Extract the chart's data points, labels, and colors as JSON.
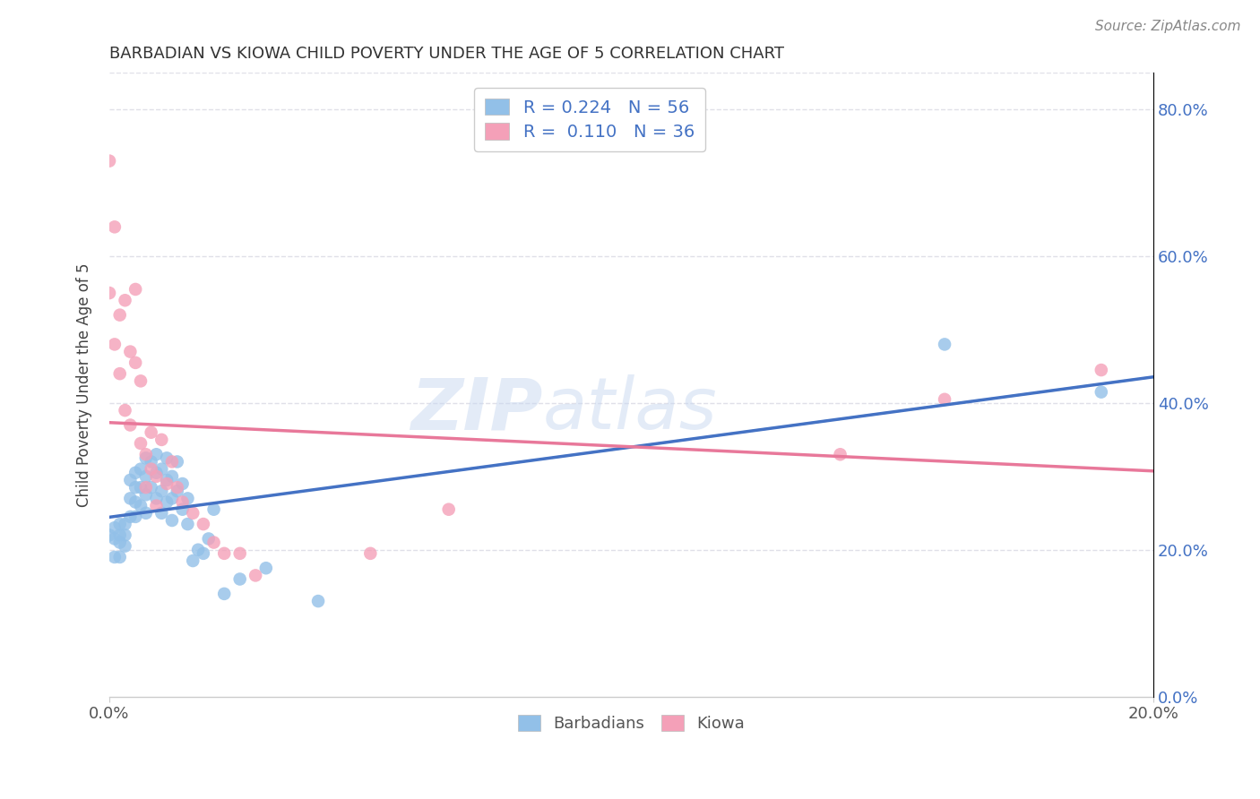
{
  "title": "BARBADIAN VS KIOWA CHILD POVERTY UNDER THE AGE OF 5 CORRELATION CHART",
  "source": "Source: ZipAtlas.com",
  "ylabel": "Child Poverty Under the Age of 5",
  "xlim": [
    0.0,
    0.2
  ],
  "ylim": [
    0.0,
    0.85
  ],
  "yticks": [
    0.0,
    0.2,
    0.4,
    0.6,
    0.8
  ],
  "xticks": [
    0.0,
    0.2
  ],
  "legend_labels": [
    "Barbadians",
    "Kiowa"
  ],
  "barbadian_R": "0.224",
  "barbadian_N": "56",
  "kiowa_R": "0.110",
  "kiowa_N": "36",
  "blue_color": "#92C0E8",
  "pink_color": "#F4A0B8",
  "blue_line_color": "#4472C4",
  "pink_line_color": "#E8789A",
  "dashed_color": "#A0C0E0",
  "barbadian_x": [
    0.0,
    0.001,
    0.001,
    0.001,
    0.002,
    0.002,
    0.002,
    0.002,
    0.003,
    0.003,
    0.003,
    0.004,
    0.004,
    0.004,
    0.005,
    0.005,
    0.005,
    0.005,
    0.006,
    0.006,
    0.006,
    0.007,
    0.007,
    0.007,
    0.007,
    0.008,
    0.008,
    0.009,
    0.009,
    0.009,
    0.01,
    0.01,
    0.01,
    0.011,
    0.011,
    0.011,
    0.012,
    0.012,
    0.012,
    0.013,
    0.013,
    0.014,
    0.014,
    0.015,
    0.015,
    0.016,
    0.017,
    0.018,
    0.019,
    0.02,
    0.022,
    0.025,
    0.03,
    0.04,
    0.16,
    0.19
  ],
  "barbadian_y": [
    0.22,
    0.23,
    0.215,
    0.19,
    0.235,
    0.22,
    0.21,
    0.19,
    0.235,
    0.22,
    0.205,
    0.295,
    0.27,
    0.245,
    0.305,
    0.285,
    0.265,
    0.245,
    0.31,
    0.285,
    0.26,
    0.325,
    0.3,
    0.275,
    0.25,
    0.32,
    0.285,
    0.33,
    0.305,
    0.27,
    0.31,
    0.28,
    0.25,
    0.325,
    0.295,
    0.265,
    0.3,
    0.27,
    0.24,
    0.32,
    0.28,
    0.29,
    0.255,
    0.27,
    0.235,
    0.185,
    0.2,
    0.195,
    0.215,
    0.255,
    0.14,
    0.16,
    0.175,
    0.13,
    0.48,
    0.415
  ],
  "kiowa_x": [
    0.0,
    0.0,
    0.001,
    0.001,
    0.002,
    0.002,
    0.003,
    0.003,
    0.004,
    0.004,
    0.005,
    0.005,
    0.006,
    0.006,
    0.007,
    0.007,
    0.008,
    0.008,
    0.009,
    0.009,
    0.01,
    0.011,
    0.012,
    0.013,
    0.014,
    0.016,
    0.018,
    0.02,
    0.022,
    0.025,
    0.028,
    0.05,
    0.065,
    0.14,
    0.16,
    0.19
  ],
  "kiowa_y": [
    0.73,
    0.55,
    0.64,
    0.48,
    0.52,
    0.44,
    0.54,
    0.39,
    0.47,
    0.37,
    0.555,
    0.455,
    0.43,
    0.345,
    0.285,
    0.33,
    0.36,
    0.31,
    0.3,
    0.26,
    0.35,
    0.29,
    0.32,
    0.285,
    0.265,
    0.25,
    0.235,
    0.21,
    0.195,
    0.195,
    0.165,
    0.195,
    0.255,
    0.33,
    0.405,
    0.445
  ],
  "watermark_zip": "ZIP",
  "watermark_atlas": "atlas",
  "background_color": "#FFFFFF",
  "grid_color": "#E0E0E8"
}
